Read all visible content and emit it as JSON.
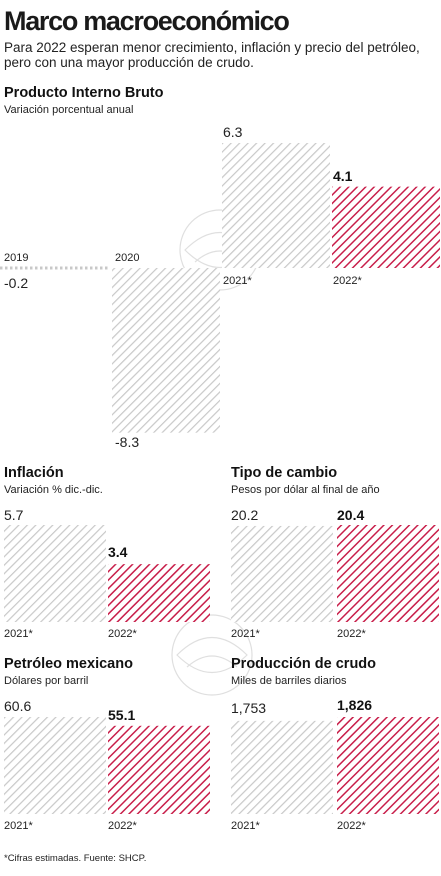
{
  "title": "Marco macroeconómico",
  "subtitle": "Para 2022 esperan menor crecimiento, inflación y precio del petróleo, pero con una mayor producción de crudo.",
  "source": "*Cifras estimadas. Fuente: SHCP.",
  "colors": {
    "past_hatch": "#c8c8c8",
    "highlight_hatch": "#c81e4a",
    "text": "#1a1a1a"
  },
  "chart_data": [
    {
      "type": "bar",
      "title": "Producto Interno Bruto",
      "subtitle": "Variación porcentual anual",
      "categories": [
        "2019",
        "2020",
        "2021*",
        "2022*"
      ],
      "values": [
        -0.2,
        -8.3,
        6.3,
        4.1
      ],
      "value_labels": [
        "-0.2",
        "-8.3",
        "6.3",
        "4.1"
      ],
      "highlight": [
        false,
        false,
        false,
        true
      ],
      "ylim": [
        -8.3,
        6.3
      ],
      "grid": false,
      "legend": "none"
    },
    {
      "type": "bar",
      "title": "Inflación",
      "subtitle": "Variación % dic.-dic.",
      "categories": [
        "2021*",
        "2022*"
      ],
      "values": [
        5.7,
        3.4
      ],
      "value_labels": [
        "5.7",
        "3.4"
      ],
      "highlight": [
        false,
        true
      ],
      "ylim": [
        0,
        5.7
      ],
      "grid": false,
      "legend": "none"
    },
    {
      "type": "bar",
      "title": "Tipo de cambio",
      "subtitle": "Pesos por dólar al final de año",
      "categories": [
        "2021*",
        "2022*"
      ],
      "values": [
        20.2,
        20.4
      ],
      "value_labels": [
        "20.2",
        "20.4"
      ],
      "highlight": [
        false,
        true
      ],
      "ylim": [
        0,
        20.4
      ],
      "grid": false,
      "legend": "none"
    },
    {
      "type": "bar",
      "title": "Petróleo mexicano",
      "subtitle": "Dólares por barril",
      "categories": [
        "2021*",
        "2022*"
      ],
      "values": [
        60.6,
        55.1
      ],
      "value_labels": [
        "60.6",
        "55.1"
      ],
      "highlight": [
        false,
        true
      ],
      "ylim": [
        0,
        60.6
      ],
      "grid": false,
      "legend": "none"
    },
    {
      "type": "bar",
      "title": "Producción de crudo",
      "subtitle": "Miles de barriles diarios",
      "categories": [
        "2021*",
        "2022*"
      ],
      "values": [
        1753,
        1826
      ],
      "value_labels": [
        "1,753",
        "1,826"
      ],
      "highlight": [
        false,
        true
      ],
      "ylim": [
        0,
        1826
      ],
      "grid": false,
      "legend": "none"
    }
  ]
}
